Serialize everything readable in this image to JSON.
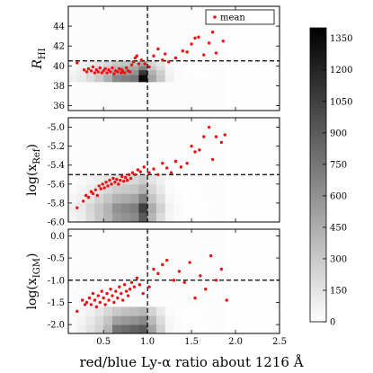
{
  "chart_data": {
    "type": "scatter",
    "x_axis": {
      "label": "red/blue Ly-α ratio about 1216 Å",
      "ticks": [
        0.5,
        1.0,
        1.5,
        2.0,
        2.5
      ],
      "tick_labels": [
        "0.5",
        "1.0",
        "1.5",
        "2.0",
        "2.5"
      ],
      "xlim": [
        0.1,
        2.5
      ],
      "vline": 1.0
    },
    "legend": {
      "label": "mean",
      "placement": "top-right",
      "marker_color": "#ee1111"
    },
    "colorbar": {
      "ticks": [
        0,
        150,
        300,
        450,
        600,
        750,
        900,
        1050,
        1200,
        1350
      ],
      "tick_labels": [
        "0",
        "150",
        "300",
        "450",
        "600",
        "750",
        "900",
        "1050",
        "1200",
        "1350"
      ],
      "range": [
        0,
        1400
      ],
      "cmap": "gray_r"
    },
    "panels": [
      {
        "ylabel_base": "R",
        "ylabel_sub": "HI",
        "ylim": [
          35.5,
          46
        ],
        "yticks": [
          36,
          38,
          40,
          42,
          44
        ],
        "ytick_labels": [
          "36",
          "38",
          "40",
          "42",
          "44"
        ],
        "hline": 40.5,
        "hist_row_edges": [
          37.3,
          38.4,
          39.1,
          39.6,
          40.0,
          40.5
        ],
        "hist_rows": [
          [
            0,
            0,
            0,
            0,
            0,
            0,
            0,
            0,
            0,
            0,
            0,
            0,
            0,
            0,
            0,
            0,
            0,
            0,
            0,
            0,
            0,
            0,
            0,
            0
          ],
          [
            80,
            120,
            200,
            300,
            450,
            650,
            700,
            750,
            1350,
            500,
            300,
            80,
            30,
            15,
            10,
            10,
            0,
            0,
            0,
            0,
            0,
            0,
            0,
            0
          ],
          [
            60,
            100,
            180,
            280,
            350,
            520,
            560,
            600,
            1100,
            420,
            260,
            70,
            25,
            10,
            10,
            5,
            0,
            0,
            0,
            0,
            0,
            0,
            0,
            0
          ],
          [
            40,
            80,
            140,
            220,
            300,
            420,
            460,
            480,
            700,
            300,
            180,
            50,
            15,
            5,
            5,
            0,
            0,
            0,
            0,
            0,
            0,
            0,
            0,
            0
          ],
          [
            30,
            60,
            100,
            160,
            220,
            300,
            330,
            350,
            480,
            220,
            140,
            40,
            10,
            5,
            5,
            0,
            0,
            0,
            0,
            0,
            0,
            0,
            0,
            0
          ]
        ],
        "points": [
          [
            0.2,
            40.3
          ],
          [
            0.28,
            39.6
          ],
          [
            0.31,
            39.4
          ],
          [
            0.33,
            39.7
          ],
          [
            0.36,
            39.5
          ],
          [
            0.38,
            39.9
          ],
          [
            0.4,
            39.3
          ],
          [
            0.42,
            39.6
          ],
          [
            0.44,
            39.4
          ],
          [
            0.46,
            39.8
          ],
          [
            0.48,
            39.3
          ],
          [
            0.5,
            39.5
          ],
          [
            0.52,
            39.7
          ],
          [
            0.54,
            39.3
          ],
          [
            0.56,
            39.6
          ],
          [
            0.58,
            39.4
          ],
          [
            0.6,
            39.8
          ],
          [
            0.62,
            39.2
          ],
          [
            0.64,
            39.5
          ],
          [
            0.66,
            39.4
          ],
          [
            0.68,
            39.7
          ],
          [
            0.7,
            39.3
          ],
          [
            0.71,
            39.6
          ],
          [
            0.72,
            39.4
          ],
          [
            0.74,
            39.3
          ],
          [
            0.76,
            39.8
          ],
          [
            0.78,
            39.5
          ],
          [
            0.8,
            39.4
          ],
          [
            0.82,
            40.1
          ],
          [
            0.84,
            40.4
          ],
          [
            0.86,
            40.8
          ],
          [
            0.88,
            41.0
          ],
          [
            0.9,
            40.2
          ],
          [
            0.93,
            40.6
          ],
          [
            0.97,
            40.2
          ],
          [
            1.02,
            39.9
          ],
          [
            1.07,
            41.0
          ],
          [
            1.12,
            41.7
          ],
          [
            1.17,
            40.6
          ],
          [
            1.2,
            41.2
          ],
          [
            1.24,
            40.4
          ],
          [
            1.32,
            40.8
          ],
          [
            1.4,
            41.5
          ],
          [
            1.45,
            41.4
          ],
          [
            1.5,
            42.2
          ],
          [
            1.54,
            42.8
          ],
          [
            1.58,
            42.9
          ],
          [
            1.64,
            41.1
          ],
          [
            1.7,
            42.3
          ],
          [
            1.74,
            43.4
          ],
          [
            1.78,
            41.3
          ],
          [
            1.86,
            42.5
          ]
        ]
      },
      {
        "ylabel_base": "log(x",
        "ylabel_sub": "Ref",
        "ylabel_end": ")",
        "ylim": [
          -6.0,
          -4.9
        ],
        "yticks": [
          -6.0,
          -5.8,
          -5.6,
          -5.4,
          -5.2,
          -5.0
        ],
        "ytick_labels": [
          "-6.0",
          "-5.8",
          "-5.6",
          "-5.4",
          "-5.2",
          "-5.0"
        ],
        "hline": -5.5,
        "hist_row_edges": [
          -6.0,
          -5.9,
          -5.8,
          -5.7,
          -5.6,
          -5.5
        ],
        "hist_rows": [
          [
            60,
            100,
            200,
            300,
            400,
            550,
            600,
            650,
            900,
            400,
            200,
            60,
            20,
            10,
            5,
            5,
            0,
            0,
            0,
            0,
            0,
            0,
            0,
            0
          ],
          [
            80,
            120,
            220,
            320,
            420,
            600,
            650,
            700,
            1050,
            450,
            250,
            70,
            25,
            10,
            10,
            5,
            0,
            0,
            0,
            0,
            0,
            0,
            0,
            0
          ],
          [
            50,
            90,
            160,
            240,
            320,
            420,
            460,
            500,
            700,
            320,
            180,
            50,
            15,
            5,
            5,
            0,
            0,
            0,
            0,
            0,
            0,
            0,
            0,
            0
          ],
          [
            30,
            60,
            100,
            150,
            220,
            280,
            300,
            320,
            420,
            220,
            120,
            30,
            10,
            5,
            5,
            0,
            0,
            0,
            0,
            0,
            0,
            0,
            0,
            0
          ],
          [
            20,
            40,
            60,
            100,
            140,
            180,
            200,
            220,
            280,
            150,
            80,
            20,
            5,
            5,
            0,
            0,
            0,
            0,
            0,
            0,
            0,
            0,
            0,
            0
          ]
        ],
        "points": [
          [
            0.2,
            -5.85
          ],
          [
            0.27,
            -5.78
          ],
          [
            0.3,
            -5.72
          ],
          [
            0.33,
            -5.74
          ],
          [
            0.36,
            -5.68
          ],
          [
            0.38,
            -5.7
          ],
          [
            0.41,
            -5.66
          ],
          [
            0.43,
            -5.72
          ],
          [
            0.45,
            -5.62
          ],
          [
            0.47,
            -5.65
          ],
          [
            0.49,
            -5.6
          ],
          [
            0.51,
            -5.64
          ],
          [
            0.53,
            -5.58
          ],
          [
            0.55,
            -5.62
          ],
          [
            0.57,
            -5.56
          ],
          [
            0.59,
            -5.6
          ],
          [
            0.61,
            -5.54
          ],
          [
            0.63,
            -5.58
          ],
          [
            0.65,
            -5.55
          ],
          [
            0.67,
            -5.6
          ],
          [
            0.69,
            -5.56
          ],
          [
            0.71,
            -5.52
          ],
          [
            0.73,
            -5.57
          ],
          [
            0.75,
            -5.53
          ],
          [
            0.77,
            -5.56
          ],
          [
            0.79,
            -5.5
          ],
          [
            0.81,
            -5.54
          ],
          [
            0.83,
            -5.48
          ],
          [
            0.86,
            -5.5
          ],
          [
            0.89,
            -5.45
          ],
          [
            0.92,
            -5.47
          ],
          [
            0.96,
            -5.42
          ],
          [
            1.02,
            -5.48
          ],
          [
            1.07,
            -5.44
          ],
          [
            1.12,
            -5.5
          ],
          [
            1.17,
            -5.38
          ],
          [
            1.22,
            -5.43
          ],
          [
            1.27,
            -5.48
          ],
          [
            1.32,
            -5.36
          ],
          [
            1.38,
            -5.42
          ],
          [
            1.45,
            -5.38
          ],
          [
            1.5,
            -5.2
          ],
          [
            1.54,
            -5.26
          ],
          [
            1.59,
            -5.24
          ],
          [
            1.64,
            -5.1
          ],
          [
            1.7,
            -5.0
          ],
          [
            1.74,
            -5.34
          ],
          [
            1.78,
            -5.1
          ],
          [
            1.84,
            -5.16
          ],
          [
            1.88,
            -5.08
          ]
        ]
      },
      {
        "ylabel_base": "log(x",
        "ylabel_sub": "IGM",
        "ylabel_end": ")",
        "ylim": [
          -2.2,
          0.15
        ],
        "yticks": [
          -2.0,
          -1.5,
          -1.0,
          -0.5,
          0.0
        ],
        "ytick_labels": [
          "-2.0",
          "-1.5",
          "-1.0",
          "-0.5",
          "0.0"
        ],
        "hline": -1.0,
        "hist_row_edges": [
          -2.2,
          -2.0,
          -1.8,
          -1.6
        ],
        "hist_rows": [
          [
            40,
            80,
            160,
            240,
            400,
            750,
            800,
            850,
            900,
            500,
            250,
            60,
            20,
            10,
            5,
            5,
            0,
            0,
            0,
            0,
            0,
            0,
            0,
            0
          ],
          [
            30,
            60,
            120,
            200,
            320,
            520,
            560,
            600,
            650,
            380,
            200,
            50,
            15,
            5,
            5,
            0,
            0,
            0,
            0,
            0,
            0,
            0,
            0,
            0
          ],
          [
            20,
            40,
            80,
            140,
            220,
            300,
            340,
            360,
            400,
            240,
            120,
            30,
            10,
            5,
            5,
            0,
            0,
            0,
            0,
            0,
            0,
            0,
            0,
            0
          ]
        ],
        "points": [
          [
            0.2,
            -1.7
          ],
          [
            0.26,
            -1.45
          ],
          [
            0.29,
            -1.55
          ],
          [
            0.31,
            -1.5
          ],
          [
            0.34,
            -1.4
          ],
          [
            0.36,
            -1.55
          ],
          [
            0.38,
            -1.3
          ],
          [
            0.4,
            -1.45
          ],
          [
            0.42,
            -1.6
          ],
          [
            0.44,
            -1.35
          ],
          [
            0.46,
            -1.5
          ],
          [
            0.48,
            -1.25
          ],
          [
            0.5,
            -1.4
          ],
          [
            0.52,
            -1.55
          ],
          [
            0.54,
            -1.3
          ],
          [
            0.56,
            -1.45
          ],
          [
            0.58,
            -1.2
          ],
          [
            0.6,
            -1.35
          ],
          [
            0.62,
            -1.5
          ],
          [
            0.64,
            -1.25
          ],
          [
            0.66,
            -1.4
          ],
          [
            0.68,
            -1.15
          ],
          [
            0.7,
            -1.3
          ],
          [
            0.72,
            -1.45
          ],
          [
            0.74,
            -1.1
          ],
          [
            0.76,
            -1.25
          ],
          [
            0.78,
            -1.35
          ],
          [
            0.8,
            -1.2
          ],
          [
            0.82,
            -1.05
          ],
          [
            0.85,
            -1.15
          ],
          [
            0.88,
            -0.95
          ],
          [
            0.91,
            -1.1
          ],
          [
            0.95,
            -1.3
          ],
          [
            1.02,
            -1.15
          ],
          [
            1.07,
            -0.75
          ],
          [
            1.12,
            -0.85
          ],
          [
            1.17,
            -0.65
          ],
          [
            1.22,
            -0.55
          ],
          [
            1.3,
            -1.0
          ],
          [
            1.36,
            -0.8
          ],
          [
            1.42,
            -1.05
          ],
          [
            1.48,
            -0.6
          ],
          [
            1.54,
            -1.4
          ],
          [
            1.6,
            -0.9
          ],
          [
            1.66,
            -1.2
          ],
          [
            1.72,
            -0.45
          ],
          [
            1.78,
            -1.0
          ],
          [
            1.84,
            -0.75
          ],
          [
            1.9,
            -1.45
          ]
        ]
      }
    ]
  }
}
